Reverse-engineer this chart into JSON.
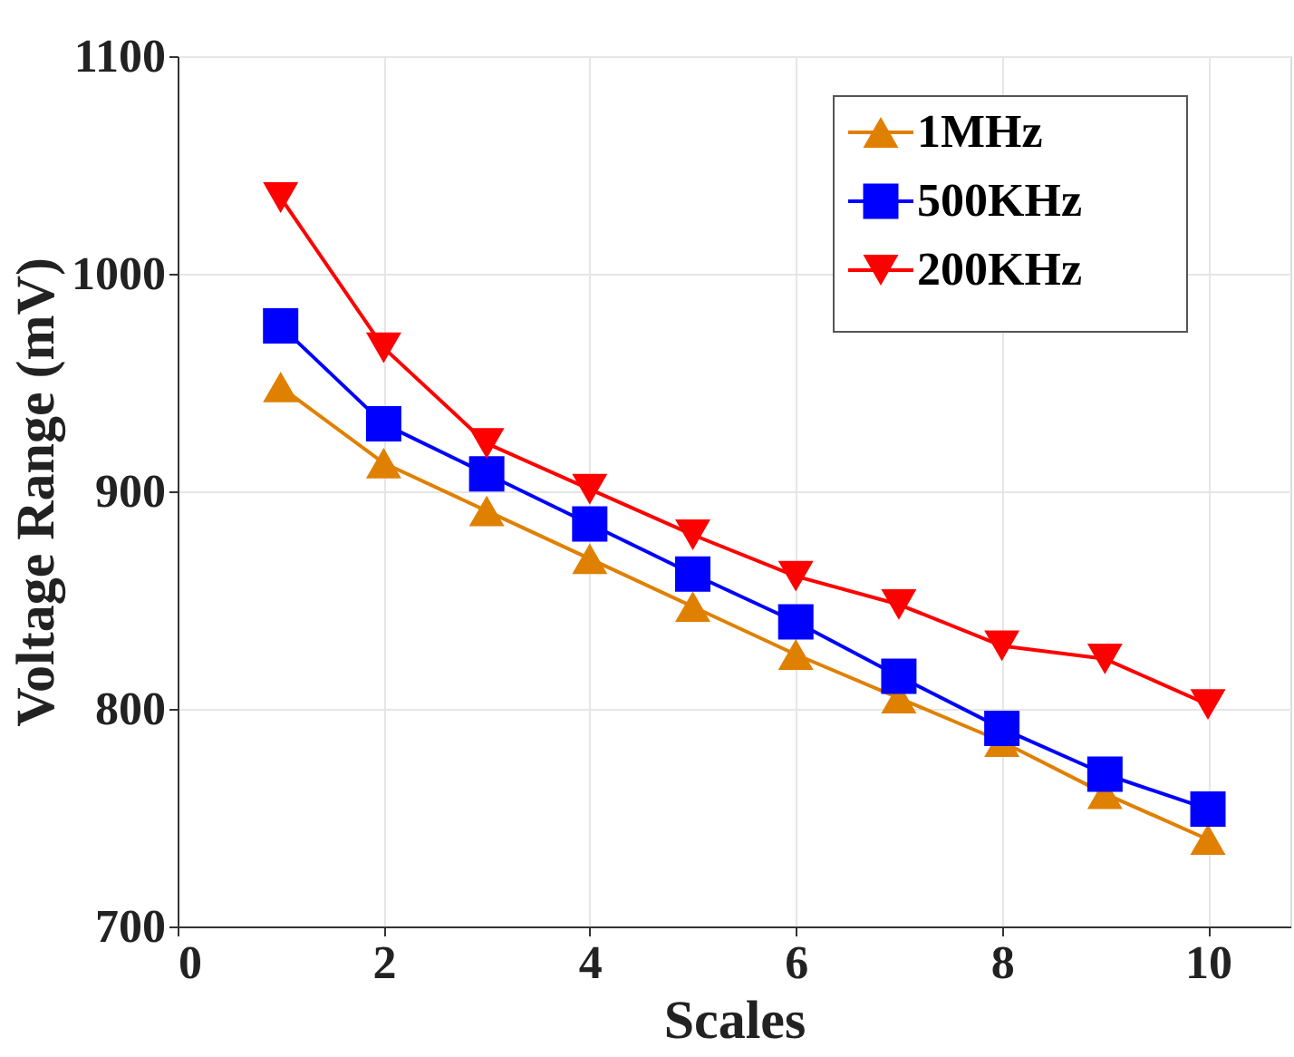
{
  "chart_data": {
    "type": "line",
    "xlabel": "Scales",
    "ylabel": "Voltage Range (mV)",
    "x": [
      1,
      2,
      3,
      4,
      5,
      6,
      7,
      8,
      9,
      10
    ],
    "series": [
      {
        "name": "1MHz",
        "color": "#e08000",
        "marker": "triangle",
        "values": [
          948,
          913,
          891,
          869,
          847,
          825,
          805,
          785,
          761,
          740
        ]
      },
      {
        "name": "500KHz",
        "color": "#0000ff",
        "marker": "square",
        "values": [
          976,
          931,
          908,
          885,
          862,
          840,
          815,
          791,
          770,
          754
        ]
      },
      {
        "name": "200KHz",
        "color": "#ff0000",
        "marker": "triangle-down",
        "values": [
          1035,
          966,
          922,
          901,
          880,
          861,
          848,
          829,
          823,
          802
        ]
      }
    ],
    "xlim": [
      0,
      10.8
    ],
    "xticks": [
      0,
      2,
      4,
      6,
      8,
      10
    ],
    "ylim": [
      700,
      1100
    ],
    "yticks": [
      700,
      800,
      900,
      1000,
      1100
    ],
    "grid": true,
    "legend": "top right",
    "line_style": "solid"
  }
}
